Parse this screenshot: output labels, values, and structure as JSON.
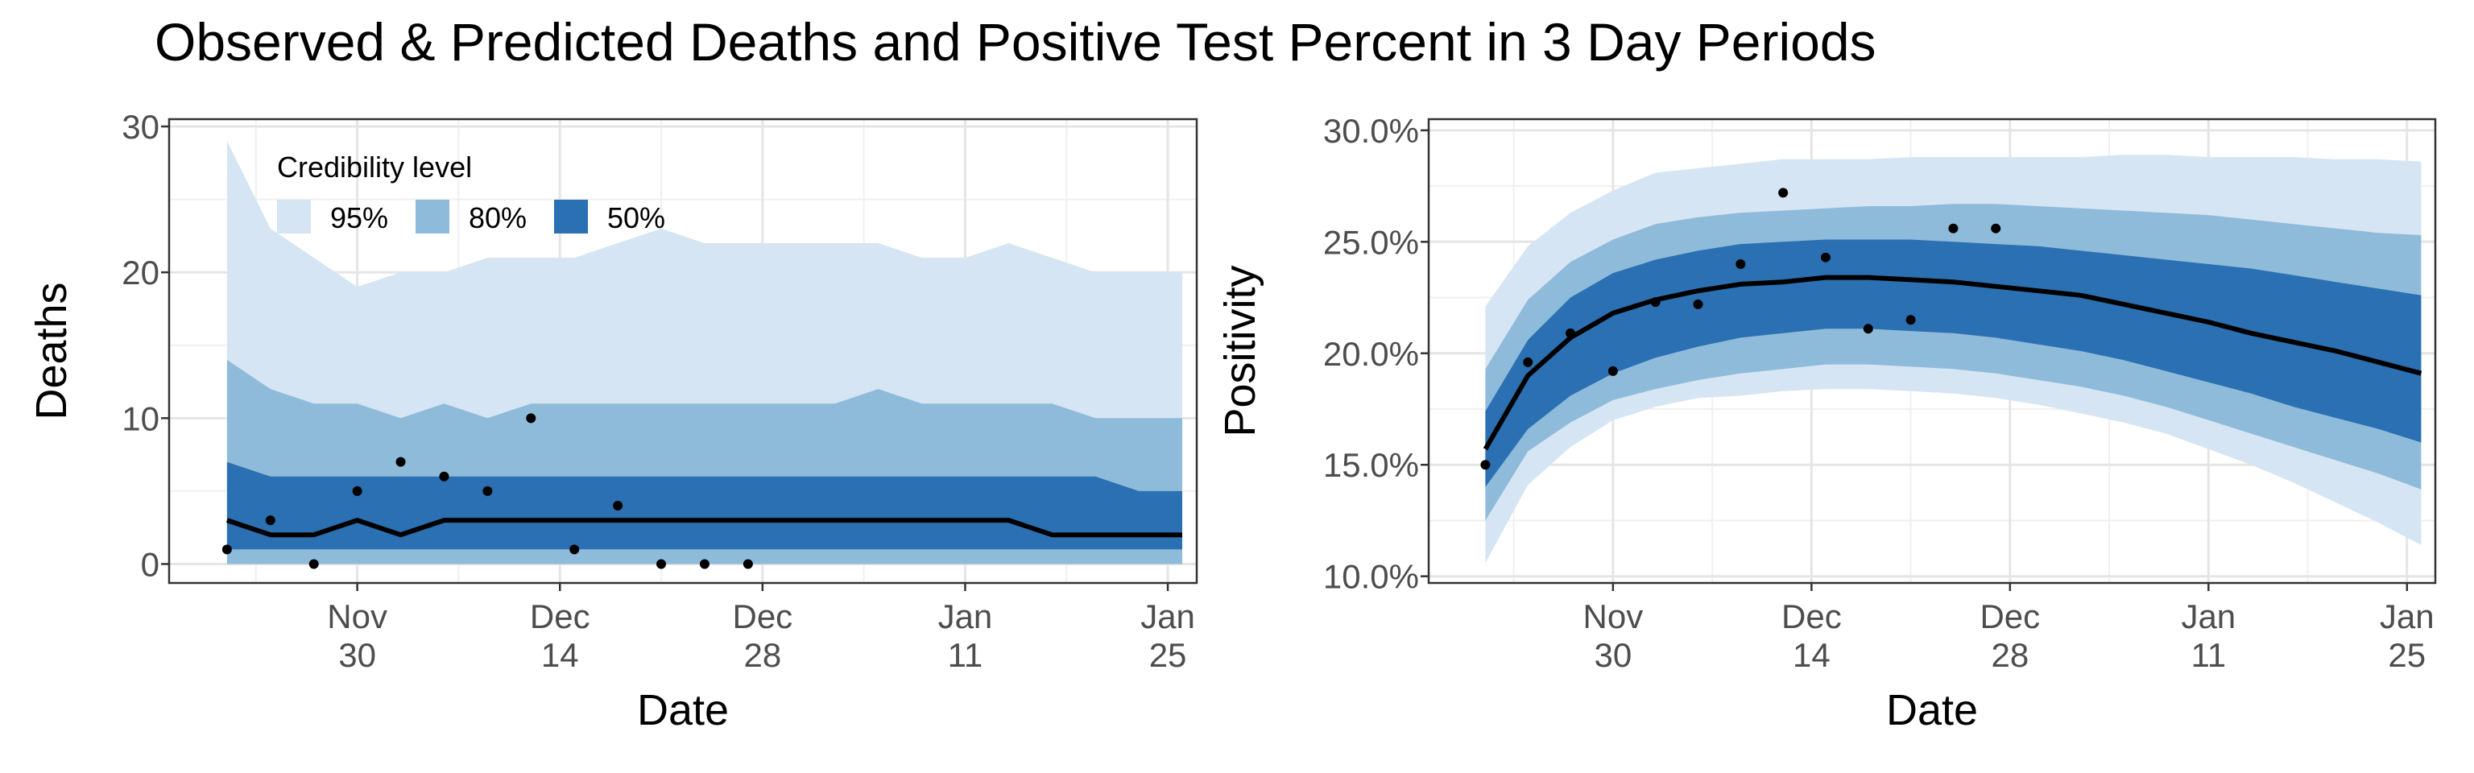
{
  "title": "Observed & Predicted Deaths and Positive Test Percent in 3 Day Periods",
  "colors": {
    "band95": "#d6e5f4",
    "band80": "#8fbbda",
    "band50": "#2b70b2",
    "line": "#000000",
    "point": "#000000",
    "grid": "#e5e5e5",
    "panel_border": "#333333"
  },
  "legend": {
    "title": "Credibility level",
    "placement": "top-left-inside-left-panel",
    "items": [
      {
        "label": "95%",
        "band": "band95"
      },
      {
        "label": "80%",
        "band": "band80"
      },
      {
        "label": "50%",
        "band": "band50"
      }
    ]
  },
  "chart_data": [
    {
      "type": "area",
      "ylabel": "Deaths",
      "xlabel": "Date",
      "xlim": [
        "2020-11-17",
        "2021-01-27"
      ],
      "ylim": [
        -1.3,
        30.5
      ],
      "y_ticks": [
        0,
        10,
        20,
        30
      ],
      "y_tick_labels": [
        "0",
        "10",
        "20",
        "30"
      ],
      "x_ticks": [
        "2020-11-30",
        "2020-12-14",
        "2020-12-28",
        "2021-01-11",
        "2021-01-25"
      ],
      "x_tick_labels": [
        [
          "Nov",
          "30"
        ],
        [
          "Dec",
          "14"
        ],
        [
          "Dec",
          "28"
        ],
        [
          "Jan",
          "11"
        ],
        [
          "Jan",
          "25"
        ]
      ],
      "grid": true,
      "x": [
        "2020-11-21",
        "2020-11-24",
        "2020-11-27",
        "2020-11-30",
        "2020-12-03",
        "2020-12-06",
        "2020-12-09",
        "2020-12-12",
        "2020-12-15",
        "2020-12-18",
        "2020-12-21",
        "2020-12-24",
        "2020-12-27",
        "2020-12-30",
        "2021-01-02",
        "2021-01-05",
        "2021-01-08",
        "2021-01-11",
        "2021-01-14",
        "2021-01-17",
        "2021-01-20",
        "2021-01-23",
        "2021-01-26"
      ],
      "median": [
        3,
        2,
        2,
        3,
        2,
        3,
        3,
        3,
        3,
        3,
        3,
        3,
        3,
        3,
        3,
        3,
        3,
        3,
        3,
        2,
        2,
        2,
        2
      ],
      "ci50": {
        "lower": [
          1,
          1,
          1,
          1,
          1,
          1,
          1,
          1,
          1,
          1,
          1,
          1,
          1,
          1,
          1,
          1,
          1,
          1,
          1,
          1,
          1,
          1,
          1
        ],
        "upper": [
          7,
          6,
          6,
          6,
          6,
          6,
          6,
          6,
          6,
          6,
          6,
          6,
          6,
          6,
          6,
          6,
          6,
          6,
          6,
          6,
          6,
          5,
          5
        ]
      },
      "ci80": {
        "lower": [
          0,
          0,
          0,
          0,
          0,
          0,
          0,
          0,
          0,
          0,
          0,
          0,
          0,
          0,
          0,
          0,
          0,
          0,
          0,
          0,
          0,
          0,
          0
        ],
        "upper": [
          14,
          12,
          11,
          11,
          10,
          11,
          10,
          11,
          11,
          11,
          11,
          11,
          11,
          11,
          11,
          12,
          11,
          11,
          11,
          11,
          10,
          10,
          10
        ]
      },
      "ci95": {
        "lower": [
          0,
          0,
          0,
          0,
          0,
          0,
          0,
          0,
          0,
          0,
          0,
          0,
          0,
          0,
          0,
          0,
          0,
          0,
          0,
          0,
          0,
          0,
          0
        ],
        "upper": [
          29,
          23,
          21,
          19,
          20,
          20,
          21,
          21,
          21,
          22,
          23,
          22,
          22,
          22,
          22,
          22,
          21,
          21,
          22,
          21,
          20,
          20,
          20
        ]
      },
      "observed": {
        "x": [
          "2020-11-21",
          "2020-11-24",
          "2020-11-27",
          "2020-11-30",
          "2020-12-03",
          "2020-12-06",
          "2020-12-09",
          "2020-12-12",
          "2020-12-15",
          "2020-12-18",
          "2020-12-21",
          "2020-12-24",
          "2020-12-27"
        ],
        "y": [
          1,
          3,
          0,
          5,
          7,
          6,
          5,
          10,
          1,
          4,
          0,
          0,
          0
        ]
      }
    },
    {
      "type": "area",
      "ylabel": "Positivity",
      "xlabel": "Date",
      "xlim": [
        "2020-11-17",
        "2021-01-27"
      ],
      "ylim": [
        0.097,
        0.305
      ],
      "y_ticks": [
        0.1,
        0.15,
        0.2,
        0.25,
        0.3
      ],
      "y_tick_labels": [
        "10.0%",
        "15.0%",
        "20.0%",
        "25.0%",
        "30.0%"
      ],
      "x_ticks": [
        "2020-11-30",
        "2020-12-14",
        "2020-12-28",
        "2021-01-11",
        "2021-01-25"
      ],
      "x_tick_labels": [
        [
          "Nov",
          "30"
        ],
        [
          "Dec",
          "14"
        ],
        [
          "Dec",
          "28"
        ],
        [
          "Jan",
          "11"
        ],
        [
          "Jan",
          "25"
        ]
      ],
      "grid": true,
      "x": [
        "2020-11-21",
        "2020-11-24",
        "2020-11-27",
        "2020-11-30",
        "2020-12-03",
        "2020-12-06",
        "2020-12-09",
        "2020-12-12",
        "2020-12-15",
        "2020-12-18",
        "2020-12-21",
        "2020-12-24",
        "2020-12-27",
        "2020-12-30",
        "2021-01-02",
        "2021-01-05",
        "2021-01-08",
        "2021-01-11",
        "2021-01-14",
        "2021-01-17",
        "2021-01-20",
        "2021-01-23",
        "2021-01-26"
      ],
      "median": [
        0.157,
        0.19,
        0.207,
        0.218,
        0.224,
        0.228,
        0.231,
        0.232,
        0.234,
        0.234,
        0.233,
        0.232,
        0.23,
        0.228,
        0.226,
        0.222,
        0.218,
        0.214,
        0.209,
        0.205,
        0.201,
        0.196,
        0.191
      ],
      "ci50": {
        "lower": [
          0.14,
          0.166,
          0.181,
          0.191,
          0.198,
          0.203,
          0.207,
          0.209,
          0.211,
          0.211,
          0.21,
          0.209,
          0.207,
          0.204,
          0.201,
          0.197,
          0.192,
          0.187,
          0.182,
          0.176,
          0.171,
          0.166,
          0.16
        ],
        "upper": [
          0.174,
          0.206,
          0.225,
          0.236,
          0.242,
          0.246,
          0.249,
          0.25,
          0.251,
          0.251,
          0.251,
          0.25,
          0.249,
          0.248,
          0.246,
          0.244,
          0.242,
          0.24,
          0.238,
          0.235,
          0.232,
          0.229,
          0.226
        ]
      },
      "ci80": {
        "lower": [
          0.125,
          0.156,
          0.169,
          0.179,
          0.184,
          0.188,
          0.191,
          0.193,
          0.195,
          0.195,
          0.194,
          0.193,
          0.191,
          0.188,
          0.185,
          0.181,
          0.176,
          0.17,
          0.164,
          0.158,
          0.152,
          0.146,
          0.139
        ],
        "upper": [
          0.193,
          0.224,
          0.241,
          0.251,
          0.258,
          0.261,
          0.263,
          0.264,
          0.265,
          0.266,
          0.266,
          0.267,
          0.267,
          0.266,
          0.265,
          0.264,
          0.263,
          0.262,
          0.26,
          0.258,
          0.256,
          0.254,
          0.253
        ]
      },
      "ci95": {
        "lower": [
          0.106,
          0.141,
          0.158,
          0.17,
          0.176,
          0.18,
          0.181,
          0.183,
          0.184,
          0.184,
          0.183,
          0.182,
          0.18,
          0.177,
          0.173,
          0.169,
          0.164,
          0.157,
          0.15,
          0.142,
          0.133,
          0.124,
          0.114
        ],
        "upper": [
          0.221,
          0.248,
          0.263,
          0.273,
          0.281,
          0.283,
          0.285,
          0.287,
          0.287,
          0.287,
          0.288,
          0.288,
          0.288,
          0.288,
          0.288,
          0.289,
          0.289,
          0.288,
          0.288,
          0.288,
          0.287,
          0.287,
          0.286
        ]
      },
      "observed": {
        "x": [
          "2020-11-21",
          "2020-11-24",
          "2020-11-27",
          "2020-11-30",
          "2020-12-03",
          "2020-12-06",
          "2020-12-09",
          "2020-12-12",
          "2020-12-15",
          "2020-12-18",
          "2020-12-21",
          "2020-12-24",
          "2020-12-27"
        ],
        "y": [
          0.15,
          0.196,
          0.209,
          0.192,
          0.223,
          0.222,
          0.24,
          0.272,
          0.243,
          0.211,
          0.215,
          0.256,
          0.256
        ]
      }
    }
  ]
}
